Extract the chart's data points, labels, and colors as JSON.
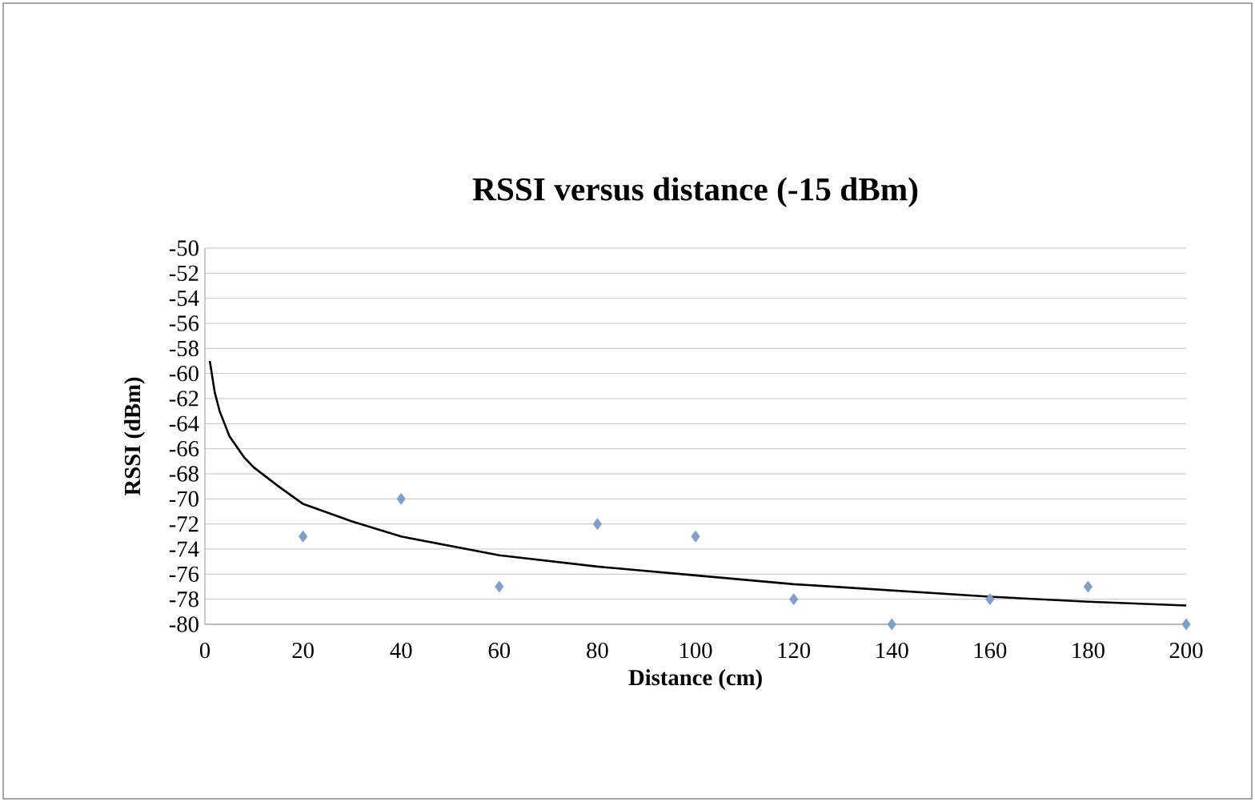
{
  "chart_data": {
    "type": "scatter",
    "title": "RSSI versus distance (-15 dBm)",
    "xlabel": "Distance (cm)",
    "ylabel": "RSSI (dBm)",
    "series": [
      {
        "color": "#7f9fcb",
        "marker": "diamond",
        "x": [
          20,
          40,
          60,
          80,
          100,
          120,
          140,
          160,
          180,
          200
        ],
        "values": [
          -73,
          -70,
          -77,
          -72,
          -73,
          -78,
          -80,
          -78,
          -77,
          -80
        ]
      },
      {
        "type": "line",
        "color": "#000000",
        "marker": "none",
        "x": [
          1,
          2,
          3,
          5,
          8,
          10,
          15,
          20,
          30,
          40,
          60,
          80,
          100,
          120,
          140,
          160,
          180,
          200
        ],
        "values": [
          -59,
          -61.5,
          -63,
          -65,
          -66.7,
          -67.5,
          -69,
          -70.4,
          -71.8,
          -73,
          -74.5,
          -75.4,
          -76.1,
          -76.8,
          -77.3,
          -77.8,
          -78.2,
          -78.5
        ]
      }
    ],
    "xlim": [
      0,
      200
    ],
    "ylim": [
      -80,
      -50
    ],
    "xticks": [
      0,
      20,
      40,
      60,
      80,
      100,
      120,
      140,
      160,
      180,
      200
    ],
    "yticks": [
      -80,
      -78,
      -76,
      -74,
      -72,
      -70,
      -68,
      -66,
      -64,
      -62,
      -60,
      -58,
      -56,
      -54,
      -52,
      -50
    ],
    "grid": "y"
  }
}
